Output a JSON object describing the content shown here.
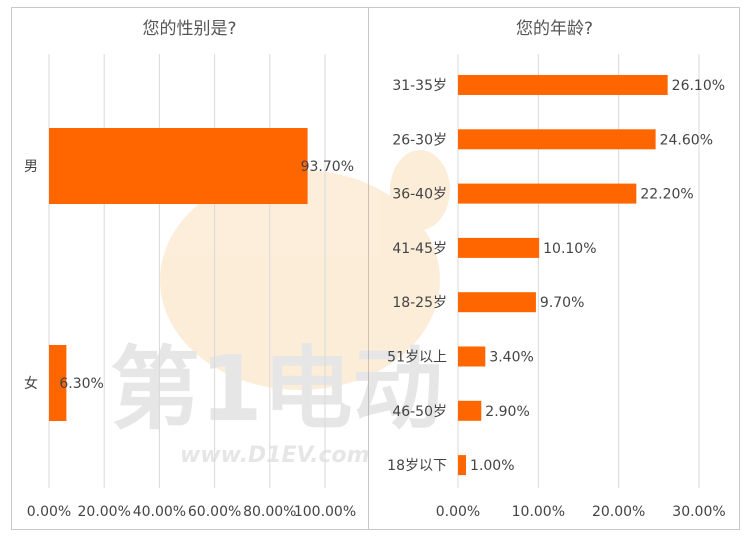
{
  "chart_data": [
    {
      "type": "bar",
      "orientation": "horizontal",
      "title": "您的性别是?",
      "categories": [
        "男",
        "女"
      ],
      "values": [
        93.7,
        6.3
      ],
      "value_labels": [
        "93.70%",
        "6.30%"
      ],
      "xlim": [
        0,
        100
      ],
      "x_ticks": [
        "0.00%",
        "20.00%",
        "40.00%",
        "60.00%",
        "80.00%",
        "100.00%"
      ],
      "grid": true,
      "bar_color": "#FF6600"
    },
    {
      "type": "bar",
      "orientation": "horizontal",
      "title": "您的年龄?",
      "categories": [
        "31-35岁",
        "26-30岁",
        "36-40岁",
        "41-45岁",
        "18-25岁",
        "51岁以上",
        "46-50岁",
        "18岁以下"
      ],
      "values": [
        26.1,
        24.6,
        22.2,
        10.1,
        9.7,
        3.4,
        2.9,
        1.0
      ],
      "value_labels": [
        "26.10%",
        "24.60%",
        "22.20%",
        "10.10%",
        "9.70%",
        "3.40%",
        "2.90%",
        "1.00%"
      ],
      "xlim": [
        0,
        30
      ],
      "x_ticks": [
        "0.00%",
        "10.00%",
        "20.00%",
        "30.00%"
      ],
      "grid": true,
      "bar_color": "#FF6600"
    }
  ],
  "watermark": {
    "logo_text": "第1电动",
    "url_text": "www.D1EV.com"
  }
}
